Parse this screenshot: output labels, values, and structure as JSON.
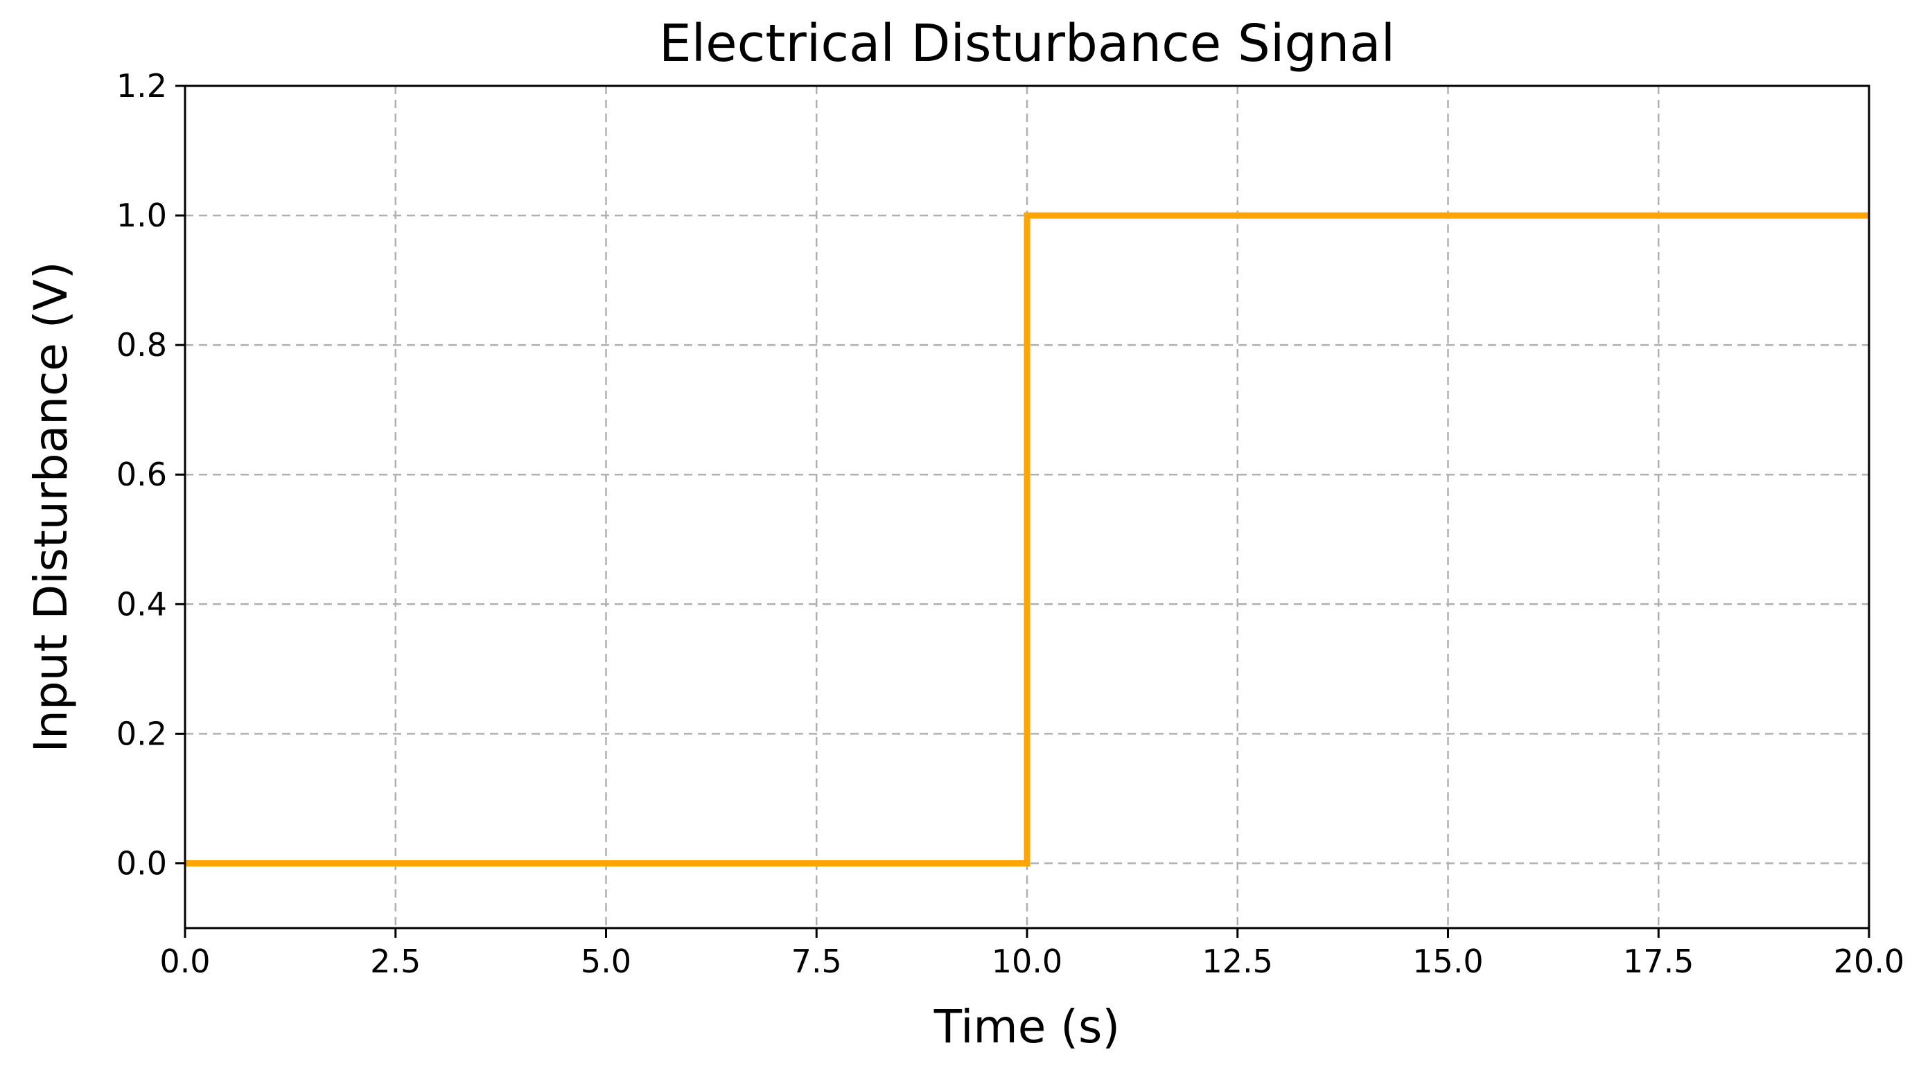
{
  "chart_data": {
    "type": "line",
    "title": "Electrical Disturbance Signal",
    "xlabel": "Time (s)",
    "ylabel": "Input Disturbance (V)",
    "xlim": [
      0,
      20
    ],
    "ylim": [
      -0.1,
      1.2
    ],
    "x_ticks": [
      "0.0",
      "2.5",
      "5.0",
      "7.5",
      "10.0",
      "12.5",
      "15.0",
      "17.5",
      "20.0"
    ],
    "x_tick_values": [
      0,
      2.5,
      5,
      7.5,
      10,
      12.5,
      15,
      17.5,
      20
    ],
    "y_ticks": [
      "0.0",
      "0.2",
      "0.4",
      "0.6",
      "0.8",
      "1.0",
      "1.2"
    ],
    "y_tick_values": [
      0,
      0.2,
      0.4,
      0.6,
      0.8,
      1.0,
      1.2
    ],
    "grid": true,
    "grid_style": "dashed",
    "series": [
      {
        "color": "#FFA500",
        "x": [
          0,
          10,
          10,
          20
        ],
        "y": [
          0,
          0,
          1,
          1
        ]
      }
    ]
  }
}
